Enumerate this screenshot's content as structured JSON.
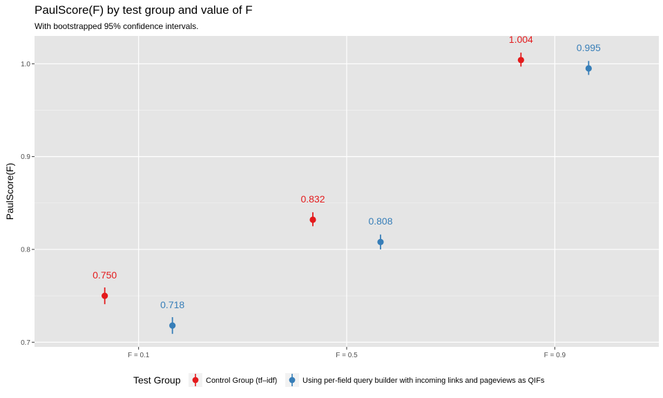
{
  "chart_data": {
    "type": "scatter",
    "title": "PaulScore(F) by test group and value of F",
    "subtitle": "With bootstrapped 95% confidence intervals.",
    "xlabel": "",
    "ylabel": "PaulScore(F)",
    "categories": [
      "F = 0.1",
      "F = 0.5",
      "F = 0.9"
    ],
    "ylim": [
      0.695,
      1.03
    ],
    "yticks": [
      0.7,
      0.8,
      0.9,
      1.0
    ],
    "yticklabels": [
      "0.7",
      "0.8",
      "0.9",
      "1.0"
    ],
    "grid": true,
    "legend_title": "Test Group",
    "legend_position": "bottom",
    "series": [
      {
        "name": "Control Group (tf–idf)",
        "color": "#E41A1C",
        "values": [
          0.75,
          0.832,
          1.004
        ],
        "ci_low": [
          0.741,
          0.825,
          0.997
        ],
        "ci_high": [
          0.759,
          0.84,
          1.012
        ],
        "labels": [
          "0.750",
          "0.832",
          "1.004"
        ]
      },
      {
        "name": "Using per-field query builder with incoming links and pageviews as QIFs",
        "color": "#377EB8",
        "values": [
          0.718,
          0.808,
          0.995
        ],
        "ci_low": [
          0.709,
          0.8,
          0.988
        ],
        "ci_high": [
          0.727,
          0.816,
          1.003
        ],
        "labels": [
          "0.718",
          "0.808",
          "0.995"
        ]
      }
    ]
  }
}
